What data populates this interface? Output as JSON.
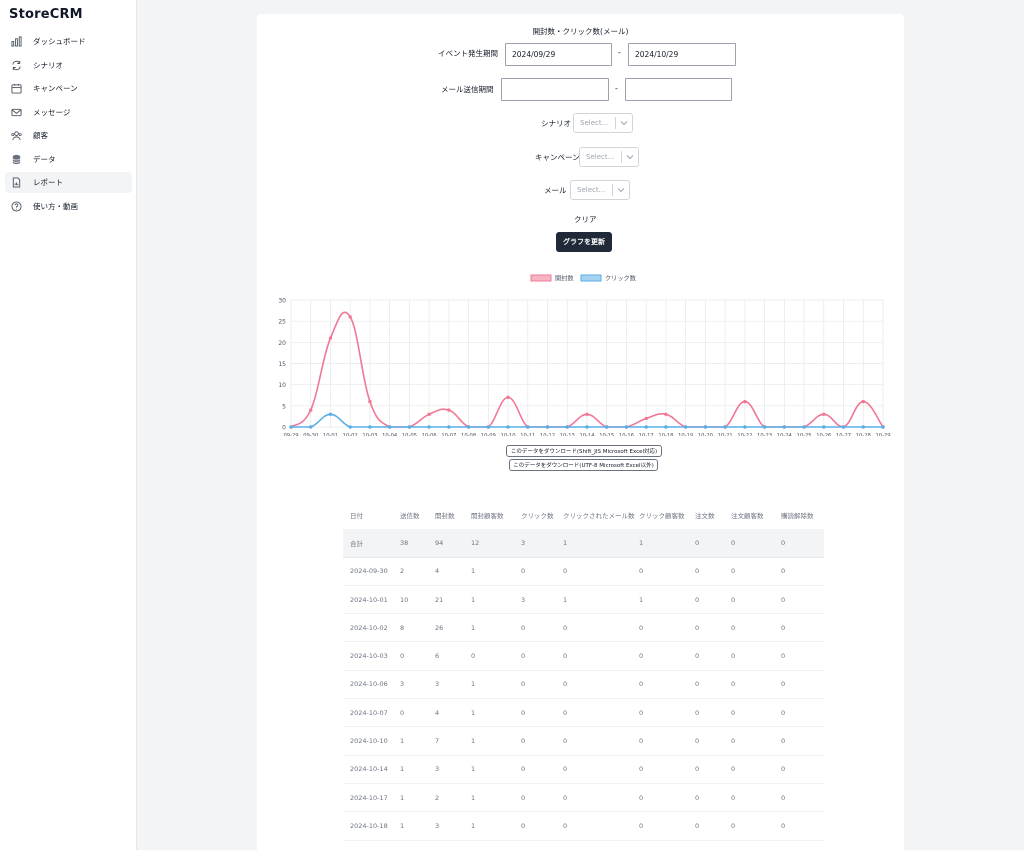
{
  "app": {
    "title": "StoreCRM"
  },
  "sidebar": {
    "items": [
      {
        "label": "ダッシュボード",
        "icon": "bar-chart-icon"
      },
      {
        "label": "シナリオ",
        "icon": "refresh-icon"
      },
      {
        "label": "キャンペーン",
        "icon": "calendar-icon"
      },
      {
        "label": "メッセージ",
        "icon": "mail-icon"
      },
      {
        "label": "顧客",
        "icon": "users-icon"
      },
      {
        "label": "データ",
        "icon": "database-icon"
      },
      {
        "label": "レポート",
        "icon": "report-icon",
        "active": true
      },
      {
        "label": "使い方・動画",
        "icon": "help-circle-icon"
      }
    ]
  },
  "report": {
    "title": "開封数・クリック数(メール)",
    "event_period_label": "イベント発生期間",
    "event_start": "2024/09/29",
    "event_end": "2024/10/29",
    "mail_period_label": "メール送信期間",
    "mail_start": "",
    "mail_end": "",
    "range_sep": "-",
    "scenario_label": "シナリオ",
    "campaign_label": "キャンペーン",
    "mail_label": "メール",
    "select_placeholder": "Select...",
    "clear_label": "クリア",
    "update_button": "グラフを更新",
    "download_sjis": "このデータをダウンロード(Shift_JIS Microsoft Excel対応)",
    "download_utf8": "このデータをダウンロード(UTF-8 Microsoft Excel以外)"
  },
  "chart_data": {
    "type": "line",
    "categories": [
      "09-29",
      "09-30",
      "10-01",
      "10-02",
      "10-03",
      "10-04",
      "10-05",
      "10-06",
      "10-07",
      "10-08",
      "10-09",
      "10-10",
      "10-11",
      "10-12",
      "10-13",
      "10-14",
      "10-15",
      "10-16",
      "10-17",
      "10-18",
      "10-19",
      "10-20",
      "10-21",
      "10-22",
      "10-23",
      "10-24",
      "10-25",
      "10-26",
      "10-27",
      "10-28",
      "10-29"
    ],
    "series": [
      {
        "name": "開封数",
        "color": "#f07894",
        "values": [
          0,
          4,
          21,
          26,
          6,
          0,
          0,
          3,
          4,
          0,
          0,
          7,
          0,
          0,
          0,
          3,
          0,
          0,
          2,
          3,
          0,
          0,
          0,
          6,
          0,
          0,
          0,
          3,
          0,
          6,
          0
        ]
      },
      {
        "name": "クリック数",
        "color": "#5aaee6",
        "values": [
          0,
          0,
          3,
          0,
          0,
          0,
          0,
          0,
          0,
          0,
          0,
          0,
          0,
          0,
          0,
          0,
          0,
          0,
          0,
          0,
          0,
          0,
          0,
          0,
          0,
          0,
          0,
          0,
          0,
          0,
          0
        ]
      }
    ],
    "yticks": [
      0,
      5,
      10,
      15,
      20,
      25,
      30
    ],
    "ylim": [
      0,
      30
    ],
    "grid": true,
    "legend": "top-center"
  },
  "table": {
    "headers": [
      "日付",
      "送信数",
      "開封数",
      "開封顧客数",
      "クリック数",
      "クリックされたメール数",
      "クリック顧客数",
      "注文数",
      "注文顧客数",
      "購読解除数"
    ],
    "total": [
      "合計",
      "38",
      "94",
      "12",
      "3",
      "1",
      "1",
      "0",
      "0",
      "0"
    ],
    "rows": [
      [
        "2024-09-30",
        "2",
        "4",
        "1",
        "0",
        "0",
        "0",
        "0",
        "0",
        "0"
      ],
      [
        "2024-10-01",
        "10",
        "21",
        "1",
        "3",
        "1",
        "1",
        "0",
        "0",
        "0"
      ],
      [
        "2024-10-02",
        "8",
        "26",
        "1",
        "0",
        "0",
        "0",
        "0",
        "0",
        "0"
      ],
      [
        "2024-10-03",
        "0",
        "6",
        "0",
        "0",
        "0",
        "0",
        "0",
        "0",
        "0"
      ],
      [
        "2024-10-06",
        "3",
        "3",
        "1",
        "0",
        "0",
        "0",
        "0",
        "0",
        "0"
      ],
      [
        "2024-10-07",
        "0",
        "4",
        "1",
        "0",
        "0",
        "0",
        "0",
        "0",
        "0"
      ],
      [
        "2024-10-10",
        "1",
        "7",
        "1",
        "0",
        "0",
        "0",
        "0",
        "0",
        "0"
      ],
      [
        "2024-10-14",
        "1",
        "3",
        "1",
        "0",
        "0",
        "0",
        "0",
        "0",
        "0"
      ],
      [
        "2024-10-17",
        "1",
        "2",
        "1",
        "0",
        "0",
        "0",
        "0",
        "0",
        "0"
      ],
      [
        "2024-10-18",
        "1",
        "3",
        "1",
        "0",
        "0",
        "0",
        "0",
        "0",
        "0"
      ]
    ]
  }
}
